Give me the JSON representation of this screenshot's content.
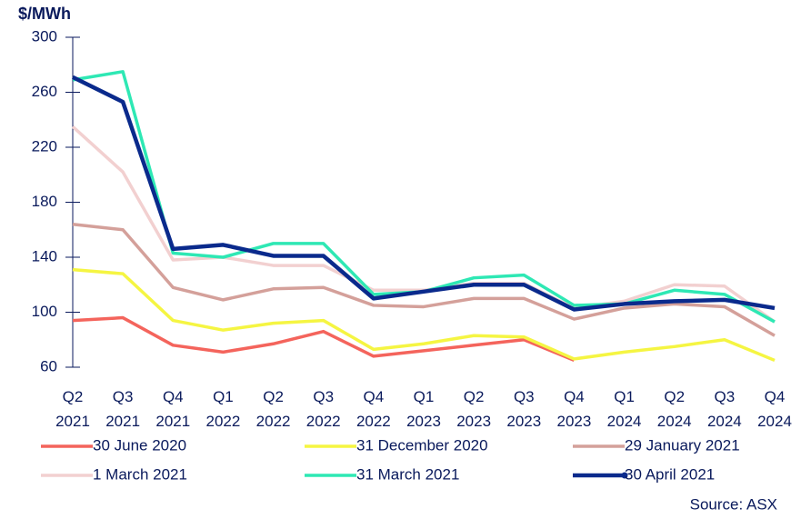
{
  "chart_data": {
    "type": "line",
    "y_label": "$/MWh",
    "source": "Source: ASX",
    "categories": [
      "Q2 2021",
      "Q3 2021",
      "Q4 2021",
      "Q1 2022",
      "Q2 2022",
      "Q3 2022",
      "Q4 2022",
      "Q1 2023",
      "Q2 2023",
      "Q3 2023",
      "Q4 2023",
      "Q1 2024",
      "Q2 2024",
      "Q3 2024",
      "Q4 2024"
    ],
    "series": [
      {
        "name": "30 June 2020",
        "color": "#f4645c",
        "values": [
          94,
          96,
          76,
          71,
          77,
          86,
          68,
          72,
          76,
          80,
          65,
          null,
          null,
          null,
          null
        ]
      },
      {
        "name": "31 December 2020",
        "color": "#f5f542",
        "values": [
          131,
          128,
          94,
          87,
          92,
          94,
          73,
          77,
          83,
          82,
          66,
          71,
          75,
          80,
          65
        ]
      },
      {
        "name": "29 January 2021",
        "color": "#d4a09a",
        "values": [
          164,
          160,
          118,
          109,
          117,
          118,
          105,
          104,
          110,
          110,
          95,
          103,
          106,
          104,
          83
        ]
      },
      {
        "name": "1 March 2021",
        "color": "#f2d0d0",
        "values": [
          235,
          202,
          138,
          140,
          134,
          134,
          116,
          116,
          121,
          121,
          103,
          108,
          120,
          119,
          93
        ]
      },
      {
        "name": "31 March 2021",
        "color": "#2ee8b4",
        "values": [
          269,
          275,
          143,
          140,
          150,
          150,
          113,
          115,
          125,
          127,
          105,
          106,
          116,
          113,
          93
        ]
      },
      {
        "name": "30 April 2021",
        "color": "#0a2a8c",
        "values": [
          271,
          253,
          146,
          149,
          141,
          141,
          110,
          115,
          120,
          120,
          102,
          106,
          108,
          109,
          103
        ]
      }
    ],
    "ylim": [
      60,
      300
    ],
    "yticks": [
      60,
      100,
      140,
      180,
      220,
      260,
      300
    ],
    "grid": false,
    "legend": "bottom"
  }
}
